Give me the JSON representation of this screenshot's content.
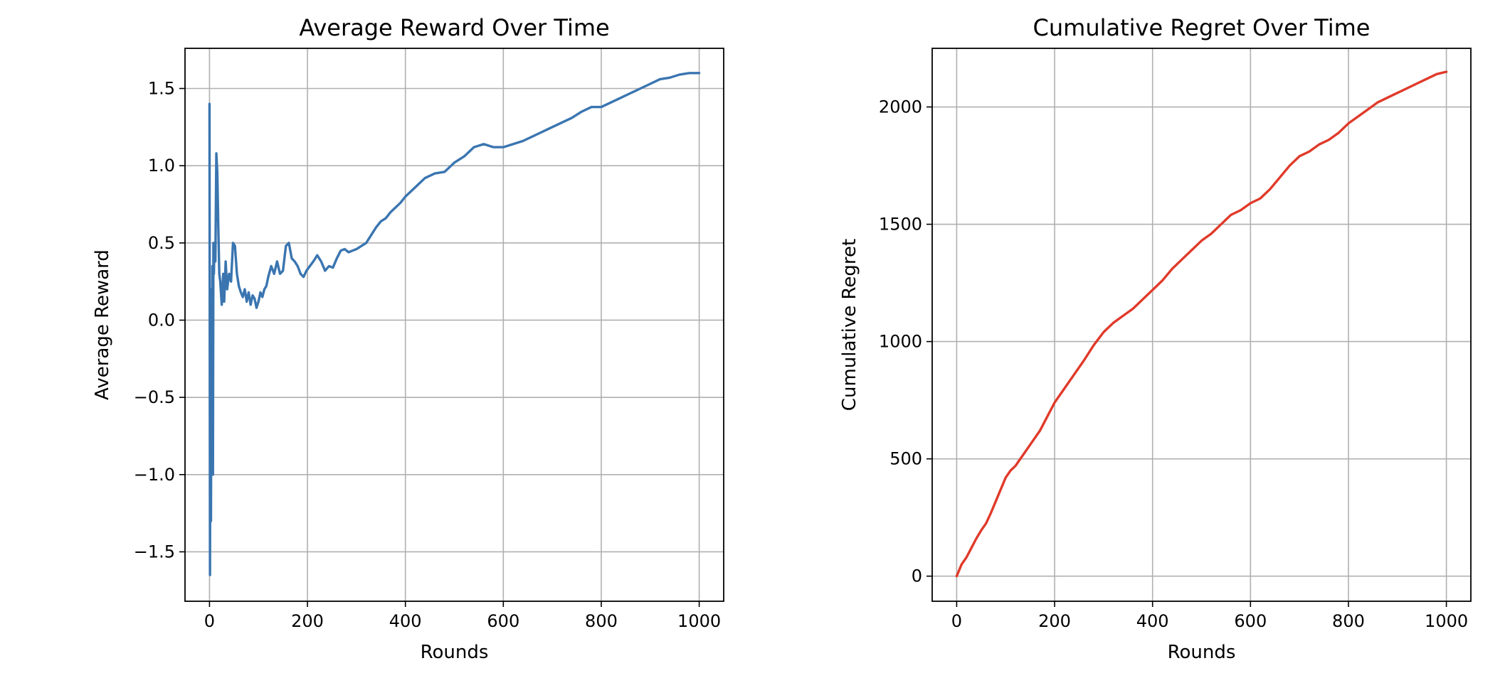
{
  "chart_data": [
    {
      "type": "line",
      "title": "Average Reward Over Time",
      "xlabel": "Rounds",
      "ylabel": "Average Reward",
      "xlim": [
        -50,
        1050
      ],
      "ylim": [
        -1.82,
        1.76
      ],
      "xticks": [
        0,
        200,
        400,
        600,
        800,
        1000
      ],
      "xtick_labels": [
        "0",
        "200",
        "400",
        "600",
        "800",
        "1000"
      ],
      "yticks": [
        -1.5,
        -1.0,
        -0.5,
        0.0,
        0.5,
        1.0,
        1.5
      ],
      "ytick_labels": [
        "−1.5",
        "−1.0",
        "−0.5",
        "0.0",
        "0.5",
        "1.0",
        "1.5"
      ],
      "grid": true,
      "color": "#3a75b0",
      "series": [
        {
          "x": [
            0,
            1,
            2,
            3,
            4,
            5,
            6,
            7,
            8,
            9,
            10,
            12,
            14,
            16,
            18,
            20,
            22,
            25,
            28,
            30,
            33,
            36,
            40,
            44,
            48,
            52,
            56,
            60,
            64,
            68,
            72,
            76,
            80,
            84,
            88,
            92,
            96,
            100,
            104,
            108,
            112,
            116,
            120,
            126,
            132,
            138,
            144,
            150,
            156,
            162,
            168,
            174,
            180,
            186,
            192,
            198,
            205,
            212,
            220,
            228,
            236,
            244,
            252,
            260,
            268,
            276,
            284,
            292,
            300,
            310,
            320,
            330,
            340,
            350,
            360,
            370,
            380,
            390,
            400,
            420,
            440,
            460,
            480,
            500,
            520,
            540,
            560,
            580,
            600,
            620,
            640,
            660,
            680,
            700,
            720,
            740,
            760,
            780,
            800,
            820,
            840,
            860,
            880,
            900,
            920,
            940,
            960,
            980,
            1000
          ],
          "y": [
            1.4,
            -1.65,
            0.2,
            -1.3,
            0.1,
            -1.0,
            0.35,
            -1.0,
            0.5,
            0.3,
            0.5,
            0.38,
            1.08,
            0.95,
            0.6,
            0.3,
            0.25,
            0.1,
            0.3,
            0.12,
            0.38,
            0.2,
            0.3,
            0.25,
            0.5,
            0.48,
            0.3,
            0.22,
            0.18,
            0.15,
            0.2,
            0.12,
            0.18,
            0.1,
            0.16,
            0.14,
            0.08,
            0.12,
            0.18,
            0.15,
            0.2,
            0.22,
            0.28,
            0.35,
            0.3,
            0.38,
            0.3,
            0.32,
            0.48,
            0.5,
            0.4,
            0.38,
            0.35,
            0.3,
            0.28,
            0.32,
            0.35,
            0.38,
            0.42,
            0.38,
            0.32,
            0.35,
            0.34,
            0.4,
            0.45,
            0.46,
            0.44,
            0.45,
            0.46,
            0.48,
            0.5,
            0.55,
            0.6,
            0.64,
            0.66,
            0.7,
            0.73,
            0.76,
            0.8,
            0.86,
            0.92,
            0.95,
            0.96,
            1.02,
            1.06,
            1.12,
            1.14,
            1.12,
            1.12,
            1.14,
            1.16,
            1.19,
            1.22,
            1.25,
            1.28,
            1.31,
            1.35,
            1.38,
            1.38,
            1.41,
            1.44,
            1.47,
            1.5,
            1.53,
            1.56,
            1.57,
            1.59,
            1.6,
            1.6
          ]
        }
      ]
    },
    {
      "type": "line",
      "title": "Cumulative Regret Over Time",
      "xlabel": "Rounds",
      "ylabel": "Cumulative Regret",
      "xlim": [
        -50,
        1050
      ],
      "ylim": [
        -107,
        2250
      ],
      "xticks": [
        0,
        200,
        400,
        600,
        800,
        1000
      ],
      "xtick_labels": [
        "0",
        "200",
        "400",
        "600",
        "800",
        "1000"
      ],
      "yticks": [
        0,
        500,
        1000,
        1500,
        2000
      ],
      "ytick_labels": [
        "0",
        "500",
        "1000",
        "1500",
        "2000"
      ],
      "grid": true,
      "color": "#e03a2a",
      "series": [
        {
          "x": [
            0,
            10,
            20,
            30,
            40,
            50,
            60,
            70,
            80,
            90,
            100,
            110,
            120,
            130,
            140,
            150,
            160,
            170,
            180,
            190,
            200,
            220,
            240,
            260,
            280,
            300,
            320,
            340,
            360,
            380,
            400,
            420,
            440,
            460,
            480,
            500,
            520,
            540,
            560,
            580,
            600,
            620,
            640,
            660,
            680,
            700,
            720,
            740,
            760,
            780,
            800,
            820,
            840,
            860,
            880,
            900,
            920,
            940,
            960,
            980,
            1000
          ],
          "y": [
            0,
            50,
            80,
            120,
            160,
            195,
            225,
            270,
            320,
            370,
            420,
            450,
            470,
            500,
            530,
            560,
            590,
            620,
            660,
            700,
            740,
            800,
            860,
            920,
            985,
            1040,
            1080,
            1110,
            1140,
            1180,
            1220,
            1260,
            1310,
            1350,
            1390,
            1430,
            1460,
            1500,
            1540,
            1560,
            1590,
            1610,
            1650,
            1700,
            1750,
            1790,
            1810,
            1840,
            1860,
            1890,
            1930,
            1960,
            1990,
            2020,
            2040,
            2060,
            2080,
            2100,
            2120,
            2140,
            2150
          ]
        }
      ]
    }
  ]
}
